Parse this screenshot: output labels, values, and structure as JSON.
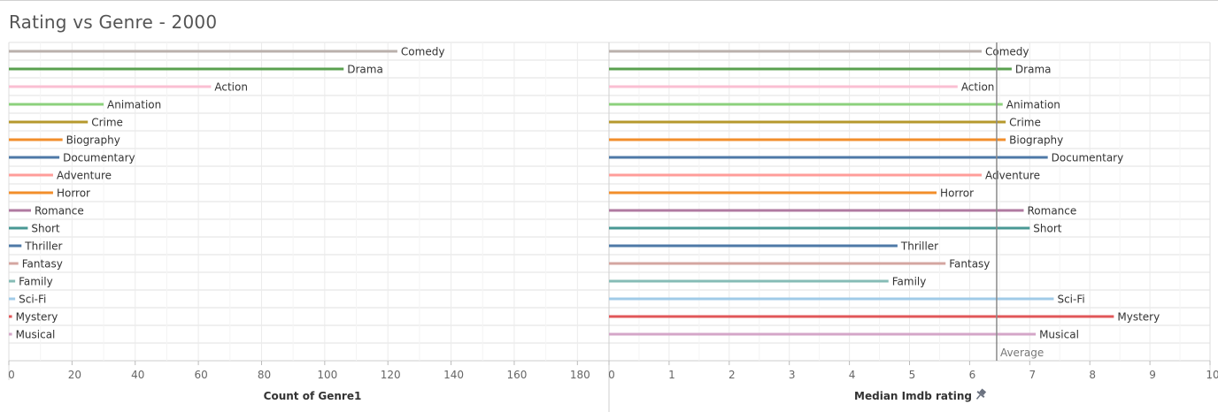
{
  "title": "Rating vs Genre - 2000",
  "chart_data": [
    {
      "type": "bar",
      "orientation": "horizontal",
      "categories": [
        "Comedy",
        "Drama",
        "Action",
        "Animation",
        "Crime",
        "Biography",
        "Documentary",
        "Adventure",
        "Horror",
        "Romance",
        "Short",
        "Thriller",
        "Fantasy",
        "Family",
        "Sci-Fi",
        "Mystery",
        "Musical"
      ],
      "values": [
        123,
        106,
        64,
        30,
        25,
        17,
        16,
        14,
        14,
        7,
        6,
        4,
        3,
        2,
        2,
        1,
        1
      ],
      "colors": [
        "#bab0ac",
        "#59a14f",
        "#fabfd2",
        "#8cd17d",
        "#b6992d",
        "#f28e2b",
        "#4e79a7",
        "#ff9d9a",
        "#f28e2b",
        "#b07aa1",
        "#499894",
        "#4e79a7",
        "#d4a6a0",
        "#86bcb6",
        "#a0cbe8",
        "#e15759",
        "#d4a6c8"
      ],
      "xlabel": "Count of Genre1",
      "xlim": [
        0,
        190
      ],
      "xticks": [
        0,
        20,
        40,
        60,
        80,
        100,
        120,
        140,
        160,
        180
      ],
      "grid": true
    },
    {
      "type": "bar",
      "orientation": "horizontal",
      "categories": [
        "Comedy",
        "Drama",
        "Action",
        "Animation",
        "Crime",
        "Biography",
        "Documentary",
        "Adventure",
        "Horror",
        "Romance",
        "Short",
        "Thriller",
        "Fantasy",
        "Family",
        "Sci-Fi",
        "Mystery",
        "Musical"
      ],
      "values": [
        6.2,
        6.7,
        5.8,
        6.55,
        6.6,
        6.6,
        7.3,
        6.2,
        5.45,
        6.9,
        7.0,
        4.8,
        5.6,
        4.65,
        7.4,
        8.4,
        7.1
      ],
      "colors": [
        "#bab0ac",
        "#59a14f",
        "#fabfd2",
        "#8cd17d",
        "#b6992d",
        "#f28e2b",
        "#4e79a7",
        "#ff9d9a",
        "#f28e2b",
        "#b07aa1",
        "#499894",
        "#4e79a7",
        "#d4a6a0",
        "#86bcb6",
        "#a0cbe8",
        "#e15759",
        "#d4a6c8"
      ],
      "xlabel": "Median  Imdb rating",
      "xlabel_icon": "pin-icon",
      "xlim": [
        0,
        10
      ],
      "xticks": [
        0,
        1,
        2,
        3,
        4,
        5,
        6,
        7,
        8,
        9,
        10
      ],
      "reference_line": {
        "label": "Average",
        "value": 6.45
      },
      "grid": true
    }
  ]
}
